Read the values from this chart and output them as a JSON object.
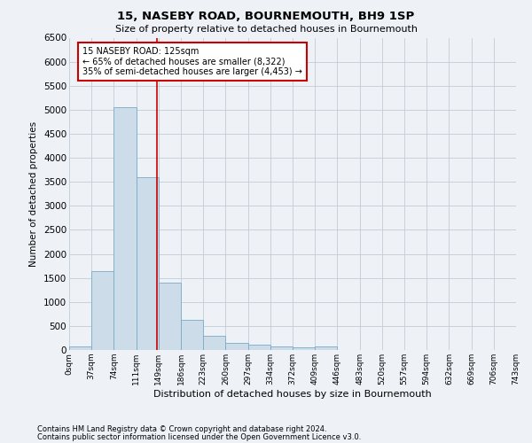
{
  "title": "15, NASEBY ROAD, BOURNEMOUTH, BH9 1SP",
  "subtitle": "Size of property relative to detached houses in Bournemouth",
  "xlabel": "Distribution of detached houses by size in Bournemouth",
  "ylabel": "Number of detached properties",
  "bar_values": [
    75,
    1650,
    5050,
    3600,
    1400,
    620,
    290,
    140,
    110,
    80,
    60,
    65,
    0,
    0,
    0,
    0,
    0,
    0,
    0,
    0
  ],
  "bar_color": "#ccdce8",
  "bar_edge_color": "#7aaac8",
  "x_labels": [
    "0sqm",
    "37sqm",
    "74sqm",
    "111sqm",
    "149sqm",
    "186sqm",
    "223sqm",
    "260sqm",
    "297sqm",
    "334sqm",
    "372sqm",
    "409sqm",
    "446sqm",
    "483sqm",
    "520sqm",
    "557sqm",
    "594sqm",
    "632sqm",
    "669sqm",
    "706sqm",
    "743sqm"
  ],
  "ylim": [
    0,
    6500
  ],
  "yticks": [
    0,
    500,
    1000,
    1500,
    2000,
    2500,
    3000,
    3500,
    4000,
    4500,
    5000,
    5500,
    6000,
    6500
  ],
  "property_line_color": "#cc0000",
  "annotation_title": "15 NASEBY ROAD: 125sqm",
  "annotation_line1": "← 65% of detached houses are smaller (8,322)",
  "annotation_line2": "35% of semi-detached houses are larger (4,453) →",
  "annotation_box_color": "#ffffff",
  "annotation_box_edge": "#cc0000",
  "footnote1": "Contains HM Land Registry data © Crown copyright and database right 2024.",
  "footnote2": "Contains public sector information licensed under the Open Government Licence v3.0.",
  "background_color": "#eef2f7",
  "plot_bg_color": "#eef2f7",
  "grid_color": "#c0ccd8"
}
